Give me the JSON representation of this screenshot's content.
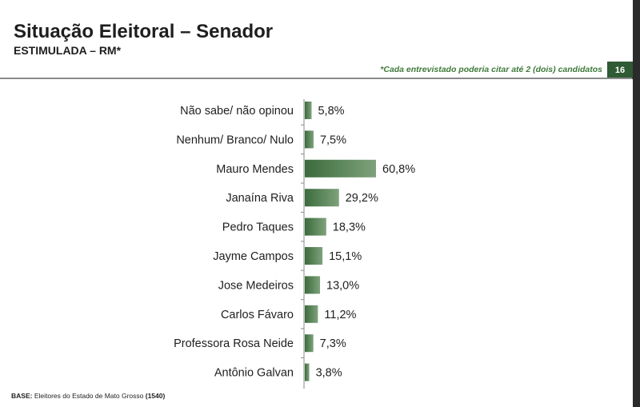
{
  "header": {
    "title": "Situação Eleitoral – Senador",
    "subtitle": "ESTIMULADA – RM*",
    "footnote": "*Cada entrevistado poderia citar até 2 (dois) candidatos",
    "page_number": "16"
  },
  "footer": {
    "base_label": "BASE:",
    "base_text": "Eleitores do Estado de Mato Grosso",
    "base_count": "(1540)"
  },
  "colors": {
    "bar": "#3b6b3c",
    "bar_light": "#7fa27c",
    "accent_green": "#3f7a3a",
    "page_badge": "#2f5a33"
  },
  "chart_data": {
    "type": "bar",
    "orientation": "horizontal",
    "categories": [
      "Não sabe/ não opinou",
      "Nenhum/ Branco/ Nulo",
      "Mauro Mendes",
      "Janaína Riva",
      "Pedro Taques",
      "Jayme Campos",
      "Jose Medeiros",
      "Carlos Fávaro",
      "Professora Rosa Neide",
      "Antônio Galvan"
    ],
    "values": [
      5.8,
      7.5,
      60.8,
      29.2,
      18.3,
      15.1,
      13.0,
      11.2,
      7.3,
      3.8
    ],
    "value_labels": [
      "5,8%",
      "7,5%",
      "60,8%",
      "29,2%",
      "18,3%",
      "15,1%",
      "13,0%",
      "11,2%",
      "7,3%",
      "3,8%"
    ],
    "xlim": [
      0,
      100
    ],
    "grid": false,
    "legend": "none"
  }
}
